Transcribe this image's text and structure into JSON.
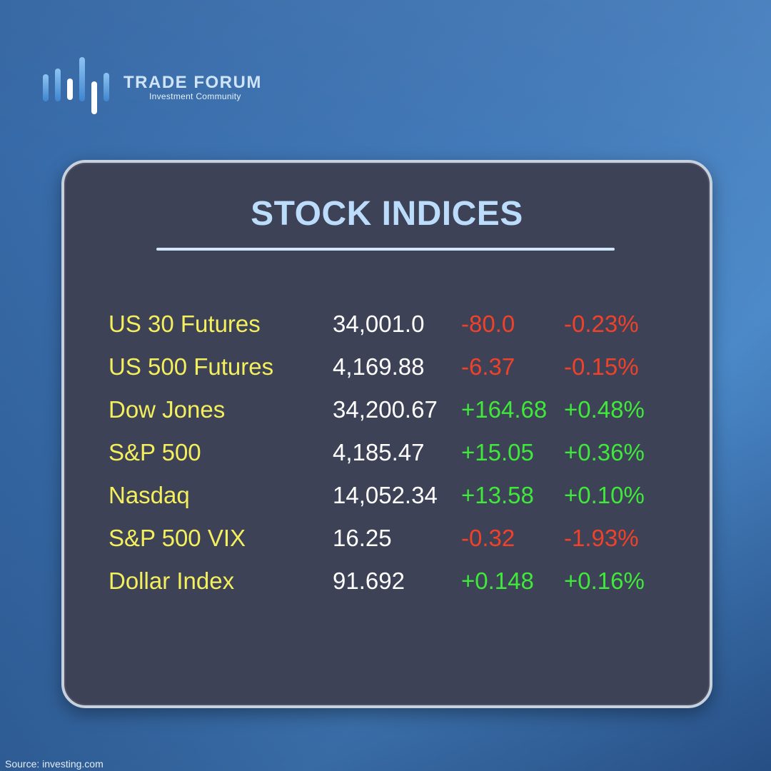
{
  "brand": {
    "name": "TRADE FORUM",
    "tagline": "Investment Community"
  },
  "card": {
    "title": "STOCK INDICES"
  },
  "indices": [
    {
      "name": "US 30 Futures",
      "price": "34,001.0",
      "change": "-80.0",
      "percent": "-0.23%",
      "direction": "down"
    },
    {
      "name": "US 500 Futures",
      "price": "4,169.88",
      "change": "-6.37",
      "percent": "-0.15%",
      "direction": "down"
    },
    {
      "name": "Dow Jones",
      "price": "34,200.67",
      "change": "+164.68",
      "percent": "+0.48%",
      "direction": "up"
    },
    {
      "name": "S&P 500",
      "price": "4,185.47",
      "change": "+15.05",
      "percent": "+0.36%",
      "direction": "up"
    },
    {
      "name": "Nasdaq",
      "price": "14,052.34",
      "change": "+13.58",
      "percent": "+0.10%",
      "direction": "up"
    },
    {
      "name": "S&P 500 VIX",
      "price": "16.25",
      "change": "-0.32",
      "percent": "-1.93%",
      "direction": "down"
    },
    {
      "name": "Dollar Index",
      "price": "91.692",
      "change": "+0.148",
      "percent": "+0.16%",
      "direction": "up"
    }
  ],
  "source": "Source: investing.com",
  "colors": {
    "name": "#f3ef5d",
    "price": "#ffffff",
    "up": "#3fe83a",
    "down": "#f0412a",
    "title": "#bcdcfb",
    "card_bg": "#3e4256"
  },
  "icons": {
    "logo": "candlestick-bars-logo-icon"
  }
}
